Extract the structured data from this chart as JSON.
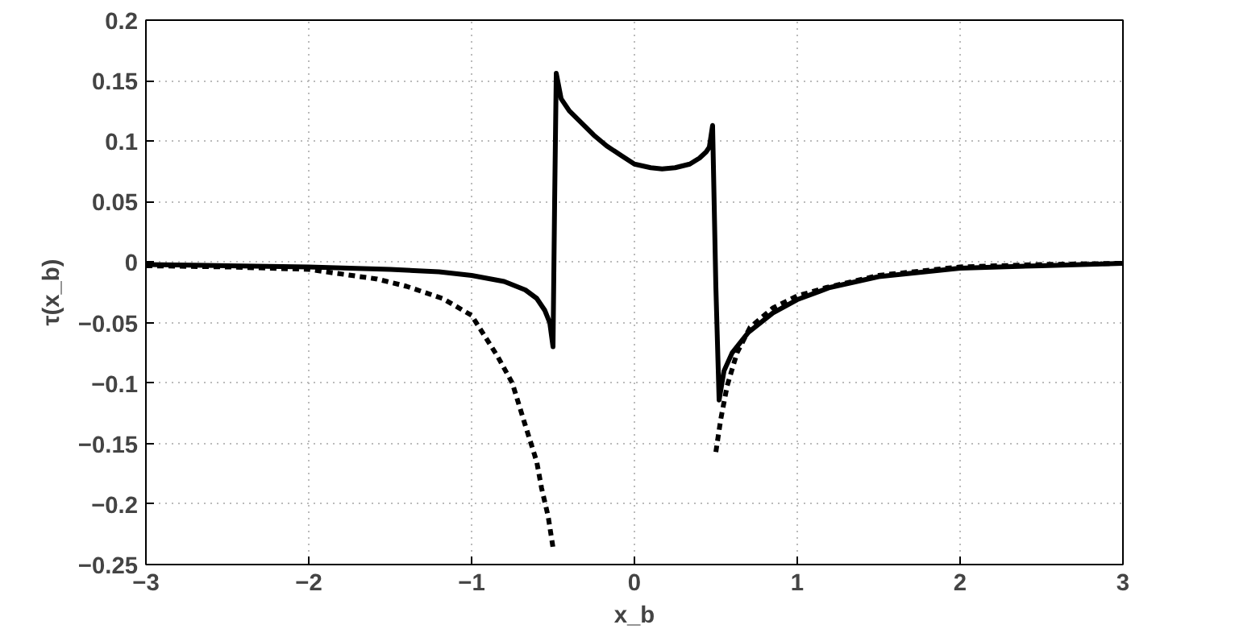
{
  "chart_data": {
    "type": "line",
    "xlabel": "x_b",
    "ylabel": "τ(x_b)",
    "xlim": [
      -3,
      3
    ],
    "ylim": [
      -0.25,
      0.2
    ],
    "xticks": [
      -3,
      -2,
      -1,
      0,
      1,
      2,
      3
    ],
    "yticks": [
      -0.25,
      -0.2,
      -0.15,
      -0.1,
      -0.05,
      0,
      0.05,
      0.1,
      0.15,
      0.2
    ],
    "grid": true,
    "series": [
      {
        "color": "#000000",
        "line_style": "solid",
        "x": [
          -3,
          -2.5,
          -2,
          -1.5,
          -1.2,
          -1,
          -0.8,
          -0.67,
          -0.6,
          -0.55,
          -0.52,
          -0.5,
          -0.49,
          -0.48,
          -0.45,
          -0.4,
          -0.34,
          -0.25,
          -0.17,
          -0.08,
          0,
          0.1,
          0.17,
          0.25,
          0.34,
          0.4,
          0.44,
          0.46,
          0.48,
          0.5,
          0.52,
          0.55,
          0.6,
          0.7,
          0.85,
          1,
          1.2,
          1.5,
          2,
          2.5,
          3
        ],
        "values": [
          -0.002,
          -0.003,
          -0.004,
          -0.006,
          -0.008,
          -0.011,
          -0.016,
          -0.023,
          -0.03,
          -0.04,
          -0.05,
          -0.07,
          0.05,
          0.156,
          0.135,
          0.125,
          0.117,
          0.105,
          0.096,
          0.088,
          0.081,
          0.078,
          0.077,
          0.078,
          0.081,
          0.086,
          0.091,
          0.095,
          0.113,
          -0.02,
          -0.114,
          -0.09,
          -0.075,
          -0.058,
          -0.042,
          -0.031,
          -0.021,
          -0.012,
          -0.005,
          -0.003,
          -0.001
        ]
      },
      {
        "color": "#000000",
        "line_style": "dashed",
        "x": [
          -3,
          -2.5,
          -2,
          -1.58,
          -1.4,
          -1.18,
          -1,
          -0.84,
          -0.75,
          -0.67,
          -0.6,
          -0.57,
          -0.53,
          -0.5
        ],
        "values": [
          -0.003,
          -0.004,
          -0.006,
          -0.014,
          -0.02,
          -0.03,
          -0.044,
          -0.078,
          -0.1,
          -0.135,
          -0.165,
          -0.187,
          -0.21,
          -0.236
        ]
      },
      {
        "color": "#000000",
        "line_style": "dashed",
        "x": [
          0.5,
          0.53,
          0.57,
          0.63,
          0.71,
          0.85,
          1,
          1.18,
          1.5,
          2,
          2.5,
          3
        ],
        "values": [
          -0.157,
          -0.13,
          -0.102,
          -0.075,
          -0.054,
          -0.038,
          -0.028,
          -0.021,
          -0.011,
          -0.004,
          -0.002,
          -0.001
        ]
      }
    ]
  }
}
